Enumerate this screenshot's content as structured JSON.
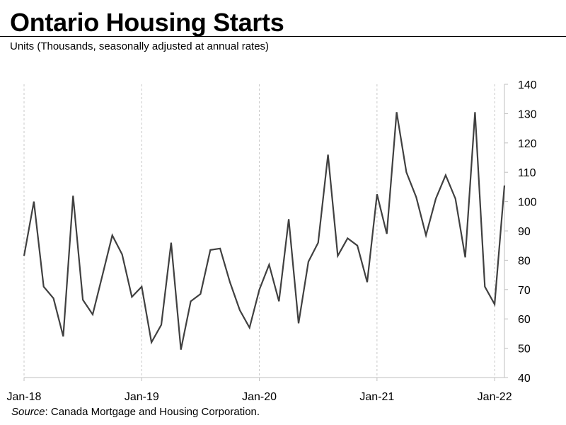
{
  "header": {
    "title": "Ontario Housing Starts",
    "subtitle": "Units (Thousands,  seasonally adjusted at annual rates)"
  },
  "footer": {
    "source_label": "Source",
    "source_text": ": Canada Mortgage and Housing Corporation."
  },
  "colors": {
    "line": "#404040",
    "grid": "#c8c8c8",
    "axis": "#bfbfbf",
    "text": "#000000"
  },
  "chart_data": {
    "type": "line",
    "title": "Ontario Housing Starts",
    "subtitle": "Units (Thousands,  seasonally adjusted at annual rates)",
    "xlabel": "",
    "ylabel": "",
    "ylim": [
      40,
      140
    ],
    "yticks": [
      40,
      50,
      60,
      70,
      80,
      90,
      100,
      110,
      120,
      130,
      140
    ],
    "y_axis_side": "right",
    "xlim": [
      "2018-01",
      "2022-02"
    ],
    "xticks": [
      {
        "x": "2018-01",
        "label": "Jan-18"
      },
      {
        "x": "2019-01",
        "label": "Jan-19"
      },
      {
        "x": "2020-01",
        "label": "Jan-20"
      },
      {
        "x": "2021-01",
        "label": "Jan-21"
      },
      {
        "x": "2022-01",
        "label": "Jan-22"
      }
    ],
    "grid": "vertical dashed at January ticks",
    "legend": "none",
    "x": [
      "2018-01",
      "2018-02",
      "2018-03",
      "2018-04",
      "2018-05",
      "2018-06",
      "2018-07",
      "2018-08",
      "2018-09",
      "2018-10",
      "2018-11",
      "2018-12",
      "2019-01",
      "2019-02",
      "2019-03",
      "2019-04",
      "2019-05",
      "2019-06",
      "2019-07",
      "2019-08",
      "2019-09",
      "2019-10",
      "2019-11",
      "2019-12",
      "2020-01",
      "2020-02",
      "2020-03",
      "2020-04",
      "2020-05",
      "2020-06",
      "2020-07",
      "2020-08",
      "2020-09",
      "2020-10",
      "2020-11",
      "2020-12",
      "2021-01",
      "2021-02",
      "2021-03",
      "2021-04",
      "2021-05",
      "2021-06",
      "2021-07",
      "2021-08",
      "2021-09",
      "2021-10",
      "2021-11",
      "2021-12",
      "2022-01",
      "2022-02"
    ],
    "series": [
      {
        "values": [
          81.5,
          100,
          71,
          67,
          54,
          102,
          66.5,
          61.5,
          75,
          88.5,
          82,
          67.5,
          71,
          52,
          58,
          86,
          49.5,
          66,
          68.5,
          83.5,
          84,
          72.5,
          63,
          57,
          70,
          78.5,
          66,
          94,
          58.5,
          79.5,
          86,
          116,
          81.5,
          87.5,
          85,
          72.5,
          102.5,
          89,
          130.5,
          110,
          101.5,
          88.5,
          101,
          109,
          101,
          81,
          130.5,
          71,
          65,
          105.5
        ]
      }
    ]
  }
}
